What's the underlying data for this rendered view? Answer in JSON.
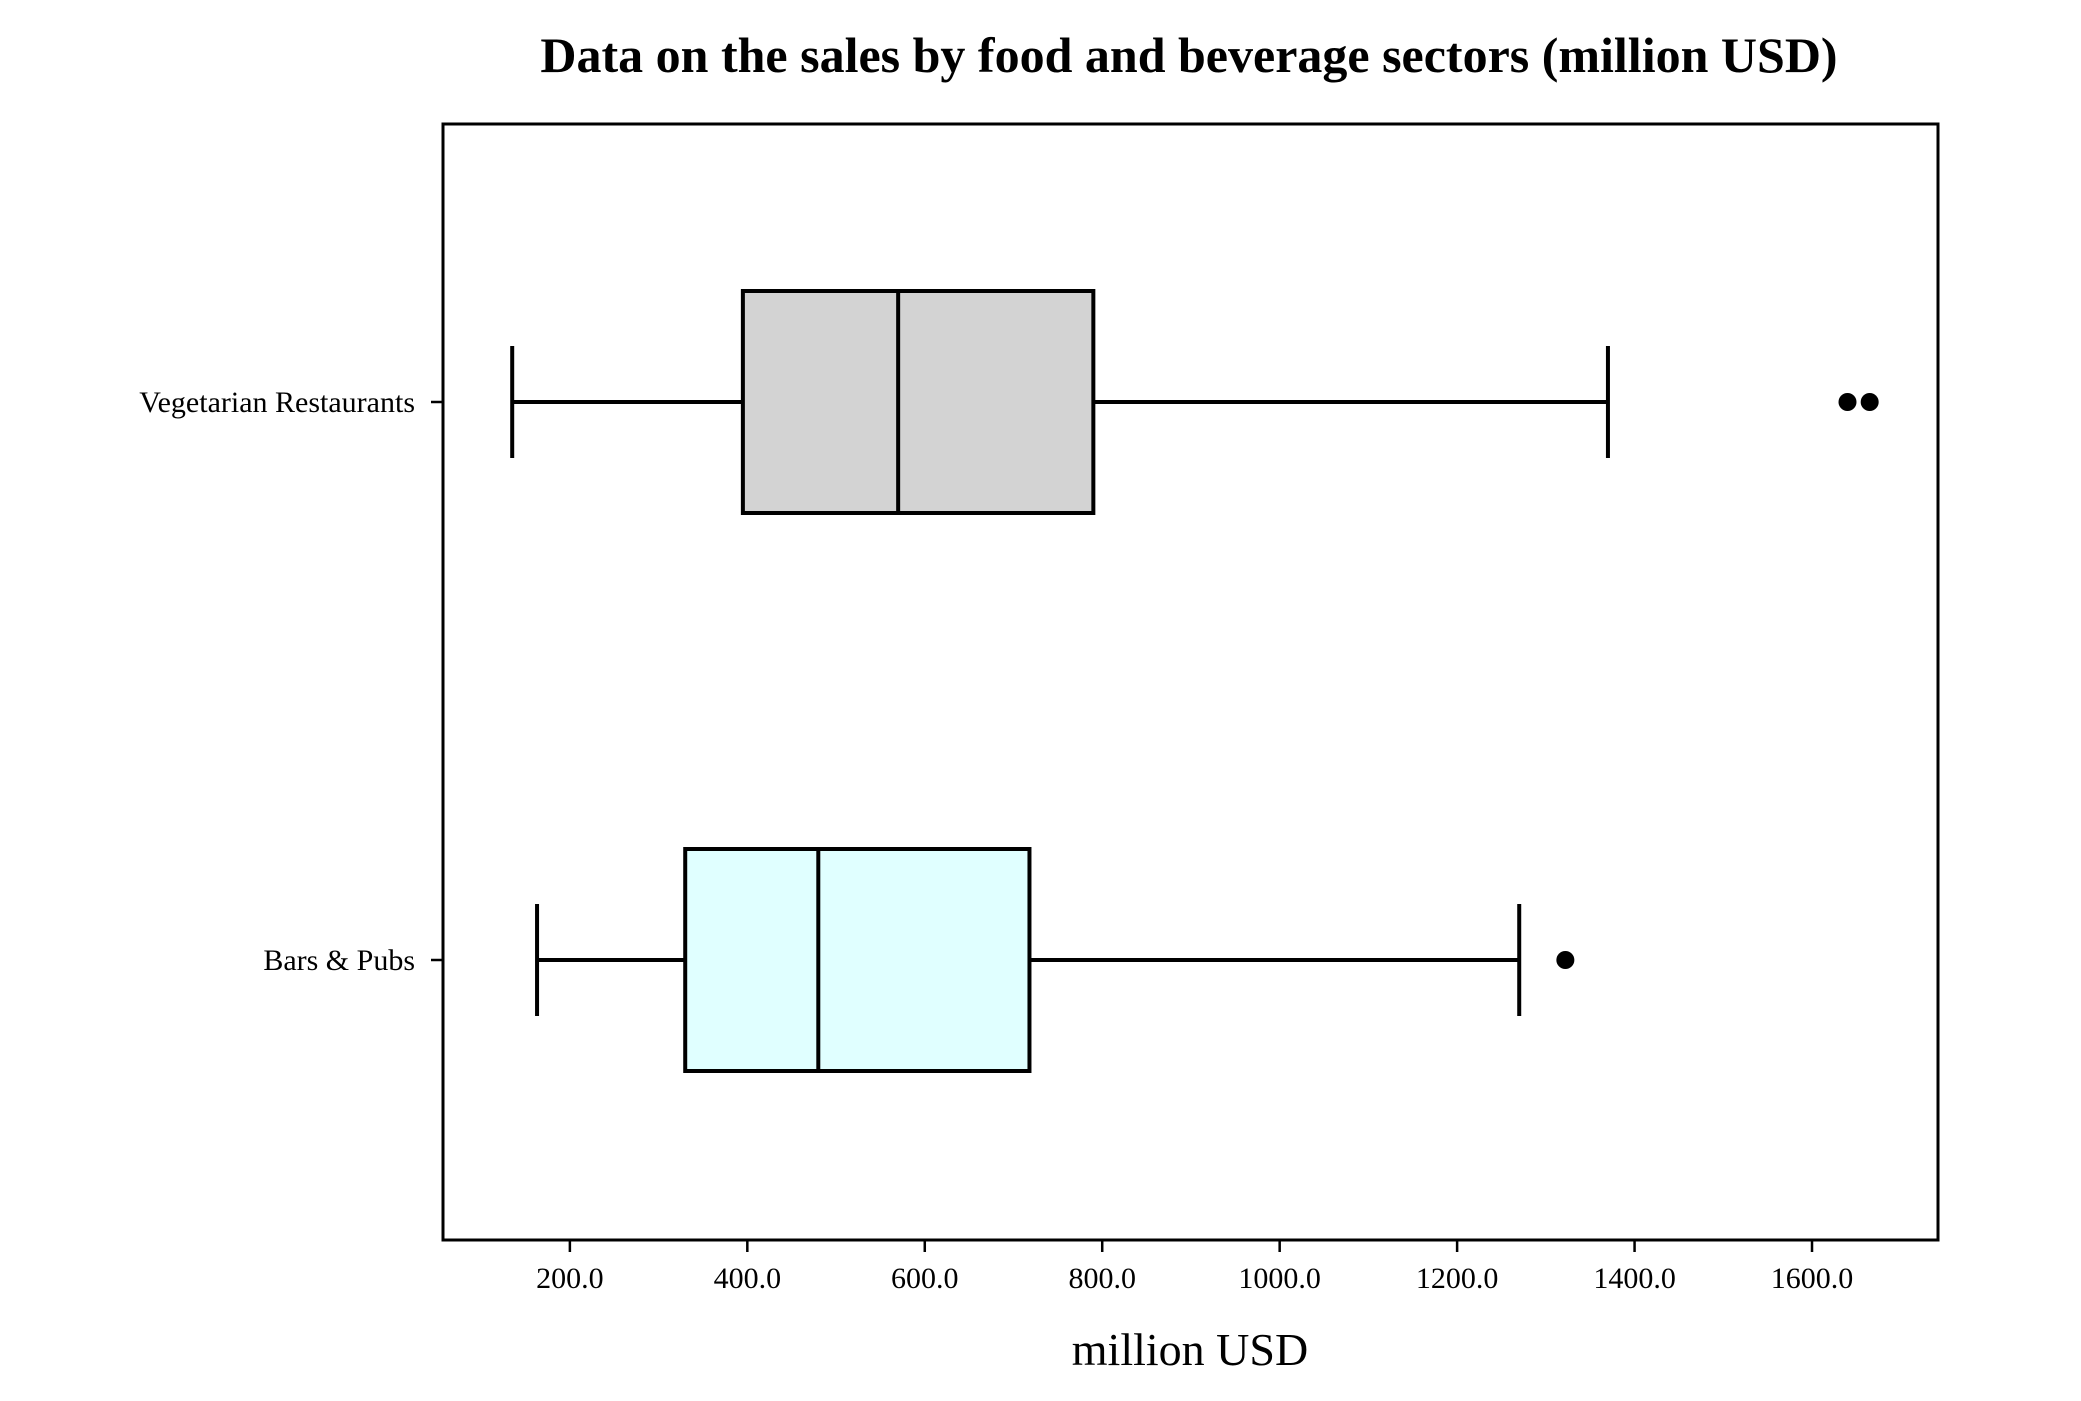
{
  "chart_data": {
    "type": "boxplot",
    "orientation": "horizontal",
    "title": "Data on the sales by food and beverage sectors (million USD)",
    "xlabel": "million USD",
    "ylabel": "",
    "xlim": [
      57,
      1742
    ],
    "xticks": [
      200,
      400,
      600,
      800,
      1000,
      1200,
      1400,
      1600
    ],
    "xtick_labels": [
      "200.0",
      "400.0",
      "600.0",
      "800.0",
      "1000.0",
      "1200.0",
      "1400.0",
      "1600.0"
    ],
    "grid": false,
    "legend": "none",
    "categories": [
      "Vegetarian Restaurants",
      "Bars & Pubs"
    ],
    "series": [
      {
        "category": "Vegetarian Restaurants",
        "whisker_low": 135,
        "q1": 395,
        "median": 570,
        "q3": 790,
        "whisker_high": 1370,
        "outliers": [
          1640,
          1665
        ],
        "fill": "#d3d3d3"
      },
      {
        "category": "Bars & Pubs",
        "whisker_low": 163,
        "q1": 330,
        "median": 480,
        "q3": 718,
        "whisker_high": 1270,
        "outliers": [
          1322
        ],
        "fill": "#e0ffff"
      }
    ],
    "colors": {
      "line": "#000000",
      "background": "#ffffff"
    }
  }
}
